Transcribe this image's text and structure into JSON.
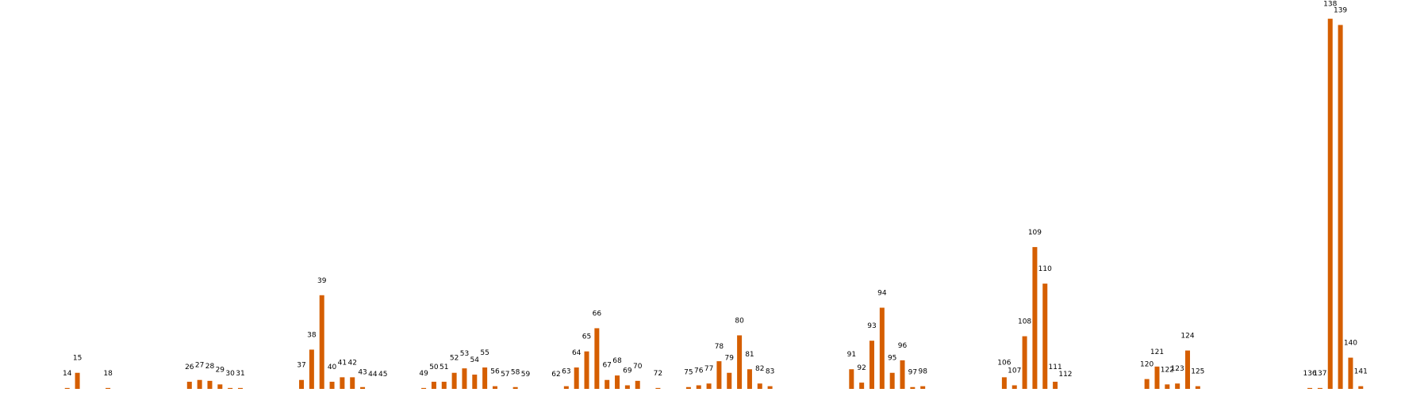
{
  "chart_data": {
    "type": "bar",
    "color": "#d55e00",
    "x": [
      14,
      15,
      18,
      26,
      27,
      28,
      29,
      30,
      31,
      37,
      38,
      39,
      40,
      41,
      42,
      43,
      44,
      45,
      49,
      50,
      51,
      52,
      53,
      54,
      55,
      56,
      57,
      58,
      59,
      62,
      63,
      64,
      65,
      66,
      67,
      68,
      69,
      70,
      72,
      75,
      76,
      77,
      78,
      79,
      80,
      81,
      82,
      83,
      91,
      92,
      93,
      94,
      95,
      96,
      97,
      98,
      106,
      107,
      108,
      109,
      110,
      111,
      112,
      120,
      121,
      122,
      123,
      124,
      125,
      136,
      137,
      138,
      139,
      140,
      141
    ],
    "values": [
      1,
      18,
      1,
      8,
      10,
      9,
      5,
      1,
      1,
      10,
      44,
      105,
      8,
      13,
      13,
      2,
      0,
      0,
      1,
      8,
      8,
      18,
      23,
      16,
      24,
      3,
      0,
      2,
      0,
      0,
      3,
      24,
      42,
      68,
      10,
      15,
      4,
      9,
      1,
      2,
      4,
      6,
      31,
      18,
      60,
      22,
      6,
      3,
      22,
      7,
      54,
      91,
      18,
      32,
      2,
      3,
      13,
      4,
      59,
      159,
      118,
      8,
      0,
      11,
      25,
      5,
      6,
      43,
      3,
      1,
      1,
      415,
      408,
      35,
      3
    ],
    "xlim": [
      7.4,
      147.6
    ],
    "ylim": [
      0,
      436
    ]
  }
}
